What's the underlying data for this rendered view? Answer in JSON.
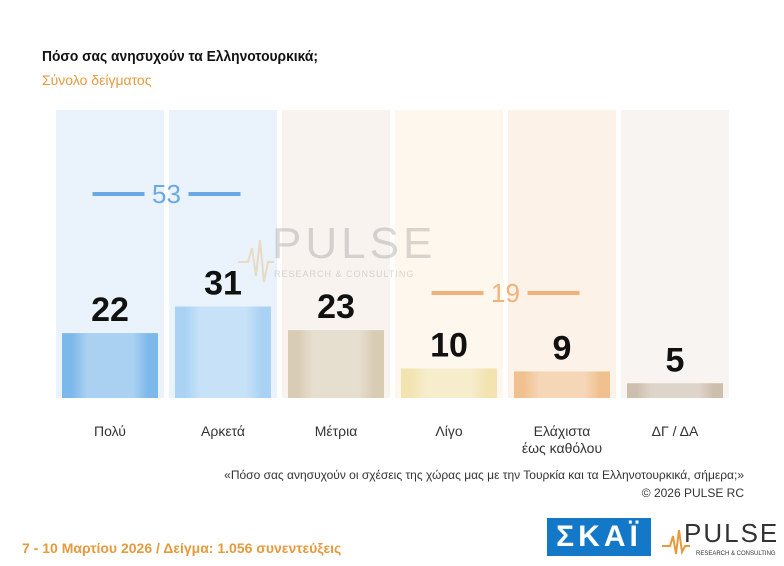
{
  "header": {
    "title": "Πόσο σας ανησυχούν τα Ελληνοτουρκικά;",
    "subtitle": "Σύνολο δείγματος"
  },
  "chart_data": {
    "type": "bar",
    "title": "Πόσο σας ανησυχούν τα Ελληνοτουρκικά;",
    "subtitle": "Σύνολο δείγματος",
    "categories": [
      "Πολύ",
      "Αρκετά",
      "Μέτρια",
      "Λίγο",
      "Ελάχιστα έως καθόλου",
      "ΔΓ / ΔΑ"
    ],
    "category_lines": [
      [
        "Πολύ"
      ],
      [
        "Αρκετά"
      ],
      [
        "Μέτρια"
      ],
      [
        "Λίγο"
      ],
      [
        "Ελάχιστα",
        "έως καθόλου"
      ],
      [
        "ΔΓ / ΔΑ"
      ]
    ],
    "values": [
      22,
      31,
      23,
      10,
      9,
      5
    ],
    "colors": [
      "#7db8ea",
      "#a9d2f4",
      "#d8ccb5",
      "#f2e3b0",
      "#f0c08e",
      "#cdbfae"
    ],
    "column_tints": [
      "#eaf3fb",
      "#eaf3fb",
      "#f8f3ee",
      "#fdf7ee",
      "#fdf2e8",
      "#f7f4f1"
    ],
    "groups": [
      {
        "label": "53",
        "from": 0,
        "to": 1,
        "color": "#6aaae4"
      },
      {
        "label": "19",
        "from": 3,
        "to": 4,
        "color": "#f0b27a"
      }
    ],
    "ylim": [
      0,
      60
    ]
  },
  "watermark": {
    "brand": "PULSE",
    "tagline": "RESEARCH & CONSULTING"
  },
  "footnote": {
    "question": "«Πόσο σας ανησυχούν οι σχέσεις της χώρας μας με την Τουρκία και τα Ελληνοτουρκικά, σήμερα;»",
    "copyright": "©  2026  PULSE RC"
  },
  "footer": {
    "dates": "7 - 10  Μαρτίου 2026  /  Δείγμα:  1.056 συνεντεύξεις"
  },
  "logos": {
    "skai": "ΣΚΑΪ",
    "pulse": "PULSE",
    "pulse_tagline": "RESEARCH & CONSULTING"
  }
}
